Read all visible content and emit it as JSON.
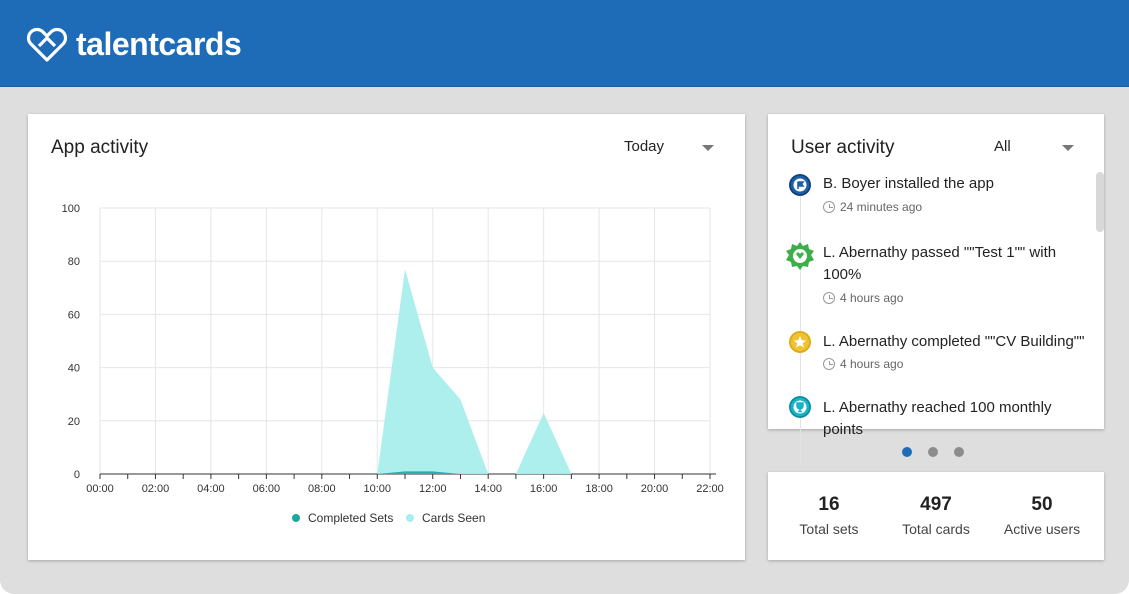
{
  "brand": {
    "name": "talentcards",
    "color": "#1e6bb8"
  },
  "app_activity": {
    "title": "App activity",
    "period_selected": "Today",
    "legend": [
      {
        "label": "Completed Sets",
        "color": "#1aa8a0"
      },
      {
        "label": "Cards Seen",
        "color": "#a8eeec"
      }
    ]
  },
  "chart_data": {
    "type": "area",
    "x": [
      "00:00",
      "01:00",
      "02:00",
      "03:00",
      "04:00",
      "05:00",
      "06:00",
      "07:00",
      "08:00",
      "09:00",
      "10:00",
      "11:00",
      "12:00",
      "13:00",
      "14:00",
      "15:00",
      "16:00",
      "17:00",
      "18:00",
      "19:00",
      "20:00",
      "21:00",
      "22:00"
    ],
    "x_tick_labels": [
      "00:00",
      "02:00",
      "04:00",
      "06:00",
      "08:00",
      "10:00",
      "12:00",
      "14:00",
      "16:00",
      "18:00",
      "20:00",
      "22:00"
    ],
    "y_tick_labels": [
      "0",
      "20",
      "40",
      "60",
      "80",
      "100"
    ],
    "ylim": [
      0,
      100
    ],
    "grid": true,
    "legend_position": "bottom",
    "series": [
      {
        "name": "Completed Sets",
        "values": [
          0,
          0,
          0,
          0,
          0,
          0,
          0,
          0,
          0,
          0,
          0,
          1,
          1,
          0,
          0,
          0,
          0,
          0,
          0,
          0,
          0,
          0,
          0
        ]
      },
      {
        "name": "Cards Seen",
        "values": [
          0,
          0,
          0,
          0,
          0,
          0,
          0,
          0,
          0,
          0,
          0,
          77,
          40,
          28,
          0,
          0,
          23,
          0,
          0,
          0,
          0,
          0,
          0
        ]
      }
    ]
  },
  "user_activity": {
    "title": "User activity",
    "filter_selected": "All",
    "items": [
      {
        "text": "B. Boyer installed the app",
        "time": "24 minutes ago",
        "icon": "flag-icon",
        "icon_color": "#1e5fa8"
      },
      {
        "text": "L. Abernathy passed \"\"Test 1\"\" with 100%",
        "time": "4 hours ago",
        "icon": "badge-icon",
        "icon_color": "#3cae4a"
      },
      {
        "text": "L. Abernathy completed \"\"CV Building\"\"",
        "time": "4 hours ago",
        "icon": "star-icon",
        "icon_color": "#f2c12e"
      },
      {
        "text": "L. Abernathy reached 100 monthly points",
        "time": "",
        "icon": "trophy-icon",
        "icon_color": "#19b3c9"
      }
    ]
  },
  "stats": [
    {
      "value": "16",
      "label": "Total sets"
    },
    {
      "value": "497",
      "label": "Total cards"
    },
    {
      "value": "50",
      "label": "Active users"
    }
  ]
}
